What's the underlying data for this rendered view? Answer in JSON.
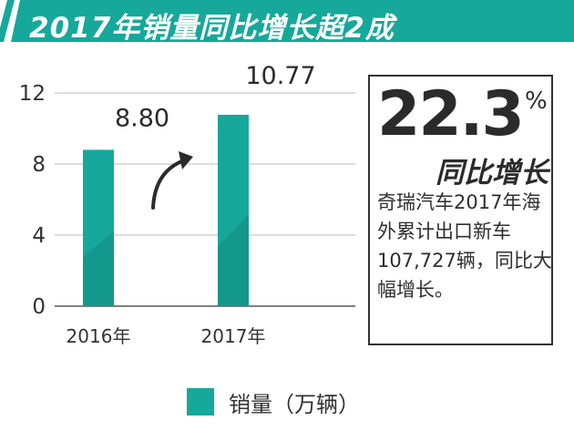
{
  "banner": {
    "title": "2017年销量同比增长超2成",
    "color": "#16a89a"
  },
  "chart_data": {
    "type": "bar",
    "categories": [
      "2016年",
      "2017年"
    ],
    "series": [
      {
        "name": "销量（万辆）",
        "values": [
          8.8,
          10.77
        ]
      }
    ],
    "value_labels": [
      "8.80",
      "10.77"
    ],
    "yticks": [
      "0",
      "4",
      "8",
      "12"
    ],
    "ylim": [
      0,
      12
    ],
    "grid": true,
    "legend": "bottom",
    "bar_color": "#16a89a",
    "bar_shade_color": "#128b7f",
    "arrow": "up-right"
  },
  "callout": {
    "number": "22.3",
    "percent_sign": "%",
    "subtitle": "同比增长",
    "text": "奇瑞汽车2017年海外累计出口新车107,727辆，同比大幅增长。"
  },
  "legend": {
    "label": "销量（万辆）"
  }
}
